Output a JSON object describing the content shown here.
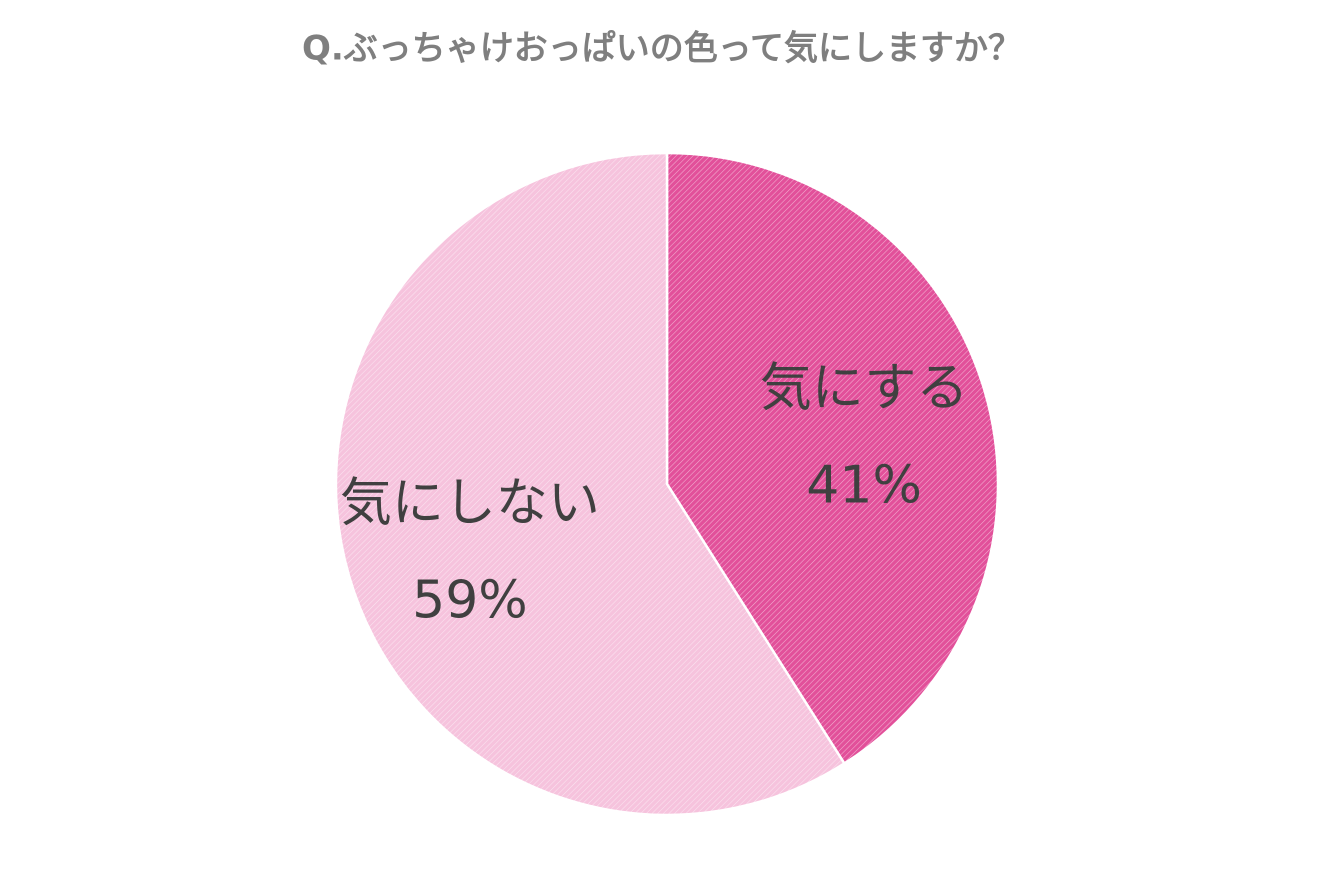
{
  "chart_data": {
    "type": "pie",
    "title": "Q.ぶっちゃけおっぱいの色って気にしますか？",
    "categories": [
      "気にする",
      "気にしない"
    ],
    "values": [
      41,
      59
    ],
    "value_labels": [
      "41%",
      "59%"
    ],
    "colors": [
      "#e2509a",
      "#f6c3dd"
    ]
  }
}
